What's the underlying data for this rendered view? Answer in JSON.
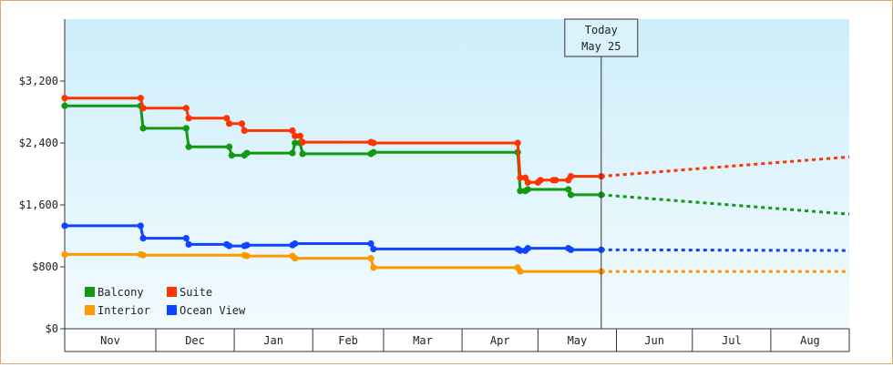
{
  "chart_data": {
    "type": "line",
    "ylim": [
      0,
      4000
    ],
    "y_ticks": [
      0,
      800,
      1600,
      2400,
      3200
    ],
    "y_tick_labels": [
      "$0",
      "$800",
      "$1,600",
      "$2,400",
      "$3,200"
    ],
    "x_range": [
      "2017-10-25",
      "2018-08-31"
    ],
    "months": [
      {
        "label": "Nov",
        "start": "2017-10-25",
        "end": "2017-11-30"
      },
      {
        "label": "Dec",
        "start": "2017-11-30",
        "end": "2017-12-31"
      },
      {
        "label": "Jan",
        "start": "2017-12-31",
        "end": "2018-01-31"
      },
      {
        "label": "Feb",
        "start": "2018-01-31",
        "end": "2018-02-28"
      },
      {
        "label": "Mar",
        "start": "2018-02-28",
        "end": "2018-03-31"
      },
      {
        "label": "Apr",
        "start": "2018-03-31",
        "end": "2018-04-30"
      },
      {
        "label": "May",
        "start": "2018-04-30",
        "end": "2018-05-31"
      },
      {
        "label": "Jun",
        "start": "2018-05-31",
        "end": "2018-06-30"
      },
      {
        "label": "Jul",
        "start": "2018-06-30",
        "end": "2018-07-31"
      },
      {
        "label": "Aug",
        "start": "2018-07-31",
        "end": "2018-08-31"
      }
    ],
    "today": {
      "date": "2018-05-25",
      "line1": "Today",
      "line2": "May 25"
    },
    "legend": {
      "placement": "bottom-left"
    },
    "series": [
      {
        "name": "Balcony",
        "color": "#119911",
        "points": [
          [
            "2017-10-25",
            2880
          ],
          [
            "2017-11-24",
            2880
          ],
          [
            "2017-11-25",
            2590
          ],
          [
            "2017-12-12",
            2590
          ],
          [
            "2017-12-13",
            2350
          ],
          [
            "2017-12-29",
            2350
          ],
          [
            "2017-12-30",
            2240
          ],
          [
            "2018-01-04",
            2240
          ],
          [
            "2018-01-05",
            2270
          ],
          [
            "2018-01-23",
            2270
          ],
          [
            "2018-01-24",
            2400
          ],
          [
            "2018-01-26",
            2400
          ],
          [
            "2018-01-27",
            2260
          ],
          [
            "2018-02-23",
            2260
          ],
          [
            "2018-02-24",
            2280
          ],
          [
            "2018-04-22",
            2280
          ],
          [
            "2018-04-23",
            1780
          ],
          [
            "2018-04-25",
            1780
          ],
          [
            "2018-04-26",
            1800
          ],
          [
            "2018-05-12",
            1800
          ],
          [
            "2018-05-13",
            1730
          ],
          [
            "2018-05-25",
            1730
          ]
        ],
        "projection": [
          [
            "2018-05-25",
            1730
          ],
          [
            "2018-08-31",
            1480
          ]
        ]
      },
      {
        "name": "Suite",
        "color": "#ff3300",
        "points": [
          [
            "2017-10-25",
            2980
          ],
          [
            "2017-11-24",
            2980
          ],
          [
            "2017-11-25",
            2850
          ],
          [
            "2017-12-12",
            2850
          ],
          [
            "2017-12-13",
            2720
          ],
          [
            "2017-12-28",
            2720
          ],
          [
            "2017-12-29",
            2650
          ],
          [
            "2018-01-03",
            2650
          ],
          [
            "2018-01-04",
            2560
          ],
          [
            "2018-01-23",
            2560
          ],
          [
            "2018-01-24",
            2490
          ],
          [
            "2018-01-26",
            2490
          ],
          [
            "2018-01-27",
            2410
          ],
          [
            "2018-02-23",
            2410
          ],
          [
            "2018-02-24",
            2400
          ],
          [
            "2018-04-22",
            2400
          ],
          [
            "2018-04-23",
            1950
          ],
          [
            "2018-04-25",
            1950
          ],
          [
            "2018-04-26",
            1890
          ],
          [
            "2018-04-30",
            1890
          ],
          [
            "2018-05-01",
            1920
          ],
          [
            "2018-05-06",
            1920
          ],
          [
            "2018-05-07",
            1920
          ],
          [
            "2018-05-12",
            1920
          ],
          [
            "2018-05-13",
            1970
          ],
          [
            "2018-05-25",
            1970
          ]
        ],
        "projection": [
          [
            "2018-05-25",
            1970
          ],
          [
            "2018-08-31",
            2220
          ]
        ]
      },
      {
        "name": "Interior",
        "color": "#ff9900",
        "points": [
          [
            "2017-10-25",
            960
          ],
          [
            "2017-11-24",
            960
          ],
          [
            "2017-11-25",
            950
          ],
          [
            "2018-01-04",
            950
          ],
          [
            "2018-01-05",
            940
          ],
          [
            "2018-01-23",
            940
          ],
          [
            "2018-01-24",
            910
          ],
          [
            "2018-02-23",
            910
          ],
          [
            "2018-02-24",
            790
          ],
          [
            "2018-04-22",
            790
          ],
          [
            "2018-04-23",
            740
          ],
          [
            "2018-05-25",
            740
          ]
        ],
        "projection": [
          [
            "2018-05-25",
            740
          ],
          [
            "2018-08-31",
            740
          ]
        ]
      },
      {
        "name": "Ocean View",
        "color": "#1144ff",
        "points": [
          [
            "2017-10-25",
            1330
          ],
          [
            "2017-11-24",
            1330
          ],
          [
            "2017-11-25",
            1170
          ],
          [
            "2017-12-12",
            1170
          ],
          [
            "2017-12-13",
            1090
          ],
          [
            "2017-12-28",
            1090
          ],
          [
            "2017-12-29",
            1070
          ],
          [
            "2018-01-04",
            1070
          ],
          [
            "2018-01-05",
            1080
          ],
          [
            "2018-01-23",
            1080
          ],
          [
            "2018-01-24",
            1100
          ],
          [
            "2018-02-23",
            1100
          ],
          [
            "2018-02-24",
            1030
          ],
          [
            "2018-04-22",
            1030
          ],
          [
            "2018-04-23",
            1010
          ],
          [
            "2018-04-25",
            1010
          ],
          [
            "2018-04-26",
            1040
          ],
          [
            "2018-05-12",
            1040
          ],
          [
            "2018-05-13",
            1020
          ],
          [
            "2018-05-25",
            1020
          ]
        ],
        "projection": [
          [
            "2018-05-25",
            1020
          ],
          [
            "2018-08-31",
            1010
          ]
        ]
      }
    ]
  }
}
